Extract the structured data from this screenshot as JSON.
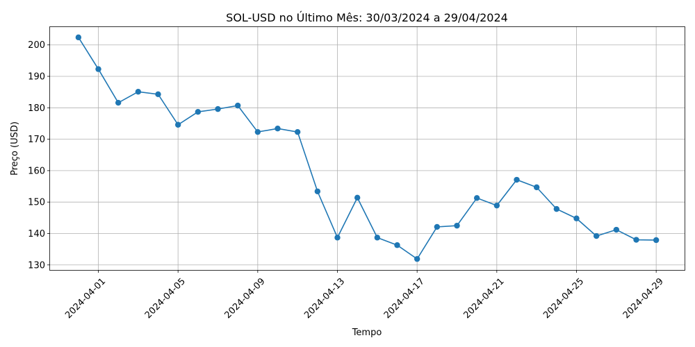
{
  "chart_data": {
    "type": "line",
    "title": "SOL-USD no Último Mês: 30/03/2024 a 29/04/2024",
    "xlabel": "Tempo",
    "ylabel": "Preço (USD)",
    "x": [
      "2024-03-31",
      "2024-04-01",
      "2024-04-02",
      "2024-04-03",
      "2024-04-04",
      "2024-04-05",
      "2024-04-06",
      "2024-04-07",
      "2024-04-08",
      "2024-04-09",
      "2024-04-10",
      "2024-04-11",
      "2024-04-12",
      "2024-04-13",
      "2024-04-14",
      "2024-04-15",
      "2024-04-16",
      "2024-04-17",
      "2024-04-18",
      "2024-04-19",
      "2024-04-20",
      "2024-04-21",
      "2024-04-22",
      "2024-04-23",
      "2024-04-24",
      "2024-04-25",
      "2024-04-26",
      "2024-04-27",
      "2024-04-28",
      "2024-04-29"
    ],
    "series": [
      {
        "values": [
          202.4,
          192.3,
          181.6,
          185.1,
          184.3,
          174.6,
          178.7,
          179.6,
          180.7,
          172.3,
          173.4,
          172.3,
          153.4,
          138.7,
          151.4,
          138.7,
          136.3,
          131.9,
          142.1,
          142.5,
          151.3,
          148.9,
          157.1,
          154.7,
          147.8,
          144.8,
          139.2,
          141.2,
          138.0,
          137.9
        ],
        "color": "#1f77b4",
        "marker": "circle"
      }
    ],
    "x_ticks": [
      "2024-04-01",
      "2024-04-05",
      "2024-04-09",
      "2024-04-13",
      "2024-04-17",
      "2024-04-21",
      "2024-04-25",
      "2024-04-29"
    ],
    "y_ticks": [
      130,
      140,
      150,
      160,
      170,
      180,
      190,
      200
    ],
    "xlim": [
      "2024-03-29T13:48",
      "2024-04-30T10:12"
    ],
    "ylim": [
      128.4,
      205.9
    ],
    "grid": true,
    "legend": "none"
  }
}
